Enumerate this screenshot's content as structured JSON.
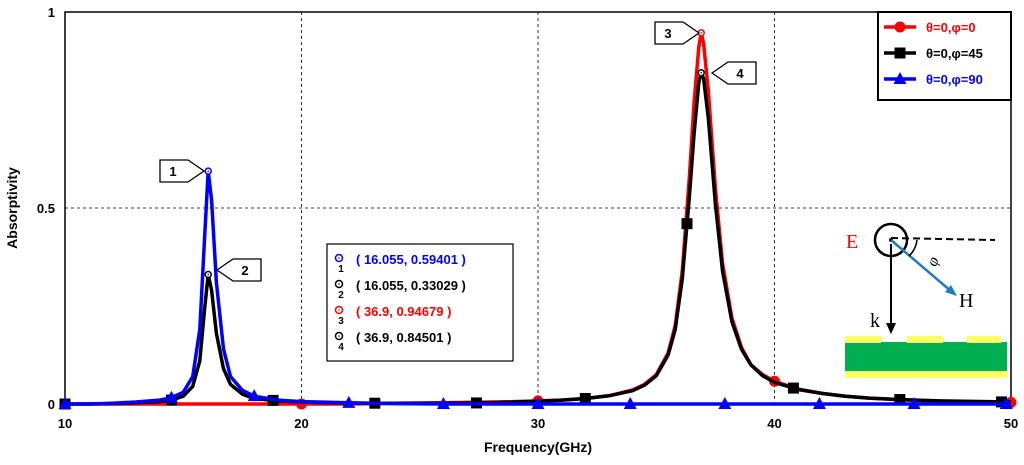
{
  "chart_data": {
    "type": "line",
    "xlabel": "Frequency(GHz)",
    "ylabel": "Absorptivity",
    "xlim": [
      10,
      50
    ],
    "ylim": [
      0,
      1
    ],
    "x_ticks": [
      10,
      20,
      30,
      40,
      50
    ],
    "y_ticks": [
      0,
      0.5,
      1
    ],
    "y_tick_labels": [
      "0",
      "0.5",
      "1"
    ],
    "grid": true,
    "legend_position": "top-right",
    "series": [
      {
        "name": "θ=0,φ=0",
        "color": "#ff0000",
        "marker": "circle",
        "points": [
          [
            10,
            0.0
          ],
          [
            11,
            0.0
          ],
          [
            12,
            0.0
          ],
          [
            13,
            0.0
          ],
          [
            14,
            0.0
          ],
          [
            15,
            0.0
          ],
          [
            16,
            0.0
          ],
          [
            17,
            0.0
          ],
          [
            18,
            0.0
          ],
          [
            19,
            0.0
          ],
          [
            20,
            0.0
          ],
          [
            22,
            0.0
          ],
          [
            24,
            0.002
          ],
          [
            26,
            0.003
          ],
          [
            28,
            0.005
          ],
          [
            29,
            0.006
          ],
          [
            30,
            0.008
          ],
          [
            31,
            0.01
          ],
          [
            32,
            0.014
          ],
          [
            33,
            0.021
          ],
          [
            34,
            0.036
          ],
          [
            34.5,
            0.05
          ],
          [
            35,
            0.075
          ],
          [
            35.5,
            0.13
          ],
          [
            35.8,
            0.2
          ],
          [
            36.1,
            0.34
          ],
          [
            36.4,
            0.58
          ],
          [
            36.6,
            0.77
          ],
          [
            36.8,
            0.91
          ],
          [
            36.9,
            0.94679
          ],
          [
            37.0,
            0.92
          ],
          [
            37.2,
            0.8
          ],
          [
            37.5,
            0.55
          ],
          [
            37.8,
            0.36
          ],
          [
            38.2,
            0.22
          ],
          [
            38.6,
            0.145
          ],
          [
            39,
            0.1
          ],
          [
            39.5,
            0.075
          ],
          [
            40,
            0.058
          ],
          [
            41,
            0.038
          ],
          [
            42,
            0.027
          ],
          [
            43,
            0.02
          ],
          [
            44,
            0.015
          ],
          [
            45,
            0.012
          ],
          [
            46,
            0.009
          ],
          [
            47,
            0.007
          ],
          [
            48,
            0.006
          ],
          [
            49,
            0.005
          ],
          [
            50,
            0.004
          ]
        ],
        "markers_x": [
          10,
          20,
          30,
          40,
          50
        ]
      },
      {
        "name": "θ=0,φ=45",
        "color": "#000000",
        "marker": "square",
        "points": [
          [
            10,
            0.0
          ],
          [
            11,
            0.0
          ],
          [
            12,
            0.001
          ],
          [
            13,
            0.003
          ],
          [
            14,
            0.006
          ],
          [
            14.5,
            0.01
          ],
          [
            15,
            0.02
          ],
          [
            15.4,
            0.045
          ],
          [
            15.7,
            0.11
          ],
          [
            15.9,
            0.24
          ],
          [
            16.055,
            0.33029
          ],
          [
            16.2,
            0.29
          ],
          [
            16.4,
            0.18
          ],
          [
            16.7,
            0.09
          ],
          [
            17,
            0.05
          ],
          [
            17.5,
            0.025
          ],
          [
            18,
            0.014
          ],
          [
            19,
            0.008
          ],
          [
            20,
            0.005
          ],
          [
            22,
            0.002
          ],
          [
            24,
            0.002
          ],
          [
            26,
            0.002
          ],
          [
            28,
            0.003
          ],
          [
            29,
            0.005
          ],
          [
            30,
            0.007
          ],
          [
            31,
            0.01
          ],
          [
            32,
            0.014
          ],
          [
            33,
            0.021
          ],
          [
            34,
            0.034
          ],
          [
            34.5,
            0.048
          ],
          [
            35,
            0.072
          ],
          [
            35.5,
            0.125
          ],
          [
            35.8,
            0.19
          ],
          [
            36.1,
            0.32
          ],
          [
            36.4,
            0.53
          ],
          [
            36.6,
            0.69
          ],
          [
            36.8,
            0.82
          ],
          [
            36.9,
            0.84501
          ],
          [
            37.0,
            0.83
          ],
          [
            37.2,
            0.73
          ],
          [
            37.5,
            0.51
          ],
          [
            37.8,
            0.34
          ],
          [
            38.2,
            0.21
          ],
          [
            38.6,
            0.14
          ],
          [
            39,
            0.1
          ],
          [
            39.5,
            0.072
          ],
          [
            40,
            0.055
          ],
          [
            41,
            0.037
          ],
          [
            42,
            0.027
          ],
          [
            43,
            0.02
          ],
          [
            44,
            0.015
          ],
          [
            45,
            0.012
          ],
          [
            46,
            0.01
          ],
          [
            47,
            0.008
          ],
          [
            48,
            0.007
          ],
          [
            49,
            0.006
          ],
          [
            50,
            0.005
          ]
        ],
        "markers_x": [
          10,
          14.5,
          18.8,
          23.1,
          27.4,
          32.0,
          36.3,
          40.8,
          45.3,
          49.6
        ]
      },
      {
        "name": "θ=0,φ=90",
        "color": "#0000ff",
        "marker": "triangle",
        "points": [
          [
            10,
            0.0
          ],
          [
            11,
            0.0
          ],
          [
            12,
            0.002
          ],
          [
            13,
            0.005
          ],
          [
            14,
            0.01
          ],
          [
            14.5,
            0.016
          ],
          [
            15,
            0.03
          ],
          [
            15.4,
            0.07
          ],
          [
            15.7,
            0.19
          ],
          [
            15.9,
            0.42
          ],
          [
            16.055,
            0.59401
          ],
          [
            16.2,
            0.52
          ],
          [
            16.4,
            0.31
          ],
          [
            16.7,
            0.14
          ],
          [
            17,
            0.07
          ],
          [
            17.5,
            0.035
          ],
          [
            18,
            0.02
          ],
          [
            19,
            0.01
          ],
          [
            20,
            0.006
          ],
          [
            22,
            0.003
          ],
          [
            24,
            0.001
          ],
          [
            26,
            0.0
          ],
          [
            30,
            0.0
          ],
          [
            34,
            0.0
          ],
          [
            38,
            0.0
          ],
          [
            42,
            0.0
          ],
          [
            46,
            0.0
          ],
          [
            50,
            0.0
          ]
        ],
        "markers_x": [
          10,
          14.5,
          18.0,
          22.0,
          26.0,
          30.0,
          33.9,
          37.9,
          41.9,
          45.9,
          49.8
        ]
      }
    ],
    "data_markers": [
      {
        "id": "1",
        "x": 16.055,
        "y": 0.59401,
        "color": "#0000ff",
        "label": "( 16.055, 0.59401 )"
      },
      {
        "id": "2",
        "x": 16.055,
        "y": 0.33029,
        "color": "#000000",
        "label": "( 16.055, 0.33029 )"
      },
      {
        "id": "3",
        "x": 36.9,
        "y": 0.94679,
        "color": "#ff0000",
        "label": "( 36.9, 0.94679 )"
      },
      {
        "id": "4",
        "x": 36.9,
        "y": 0.84501,
        "color": "#000000",
        "label": "( 36.9, 0.84501 )"
      }
    ]
  },
  "inset": {
    "e_label": "E",
    "h_label": "H",
    "k_label": "k",
    "phi_label": "φ",
    "e_color": "#ff0000",
    "h_color": "#1e7bc8",
    "substrate_color": "#00b050",
    "metal_color": "#ffff66"
  }
}
